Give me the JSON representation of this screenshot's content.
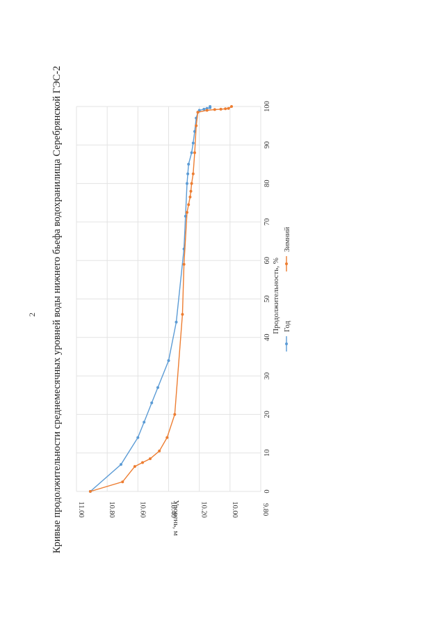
{
  "page_number": "2",
  "chart_data": {
    "type": "line",
    "title": "Кривые продолжительности среднемесячных уровней воды нижнего бьефа водохранилища Серебрянской ГЭС-2",
    "xlabel": "Продолжительность, %",
    "ylabel": "Уровень, м",
    "xlim": [
      0,
      100
    ],
    "ylim": [
      9.8,
      11.0
    ],
    "x_ticks": [
      "0",
      "10",
      "20",
      "30",
      "40",
      "50",
      "60",
      "70",
      "80",
      "90",
      "100"
    ],
    "y_ticks": [
      "11.00",
      "10.80",
      "10.60",
      "10.40",
      "10.20",
      "10.00",
      "9.80"
    ],
    "grid": true,
    "legend_position": "bottom",
    "series": [
      {
        "name": "Год",
        "color": "#5b9bd5",
        "points": [
          [
            0,
            10.91
          ],
          [
            7,
            10.71
          ],
          [
            14,
            10.6
          ],
          [
            18,
            10.56
          ],
          [
            23,
            10.51
          ],
          [
            27,
            10.47
          ],
          [
            34,
            10.4
          ],
          [
            44,
            10.35
          ],
          [
            63,
            10.3
          ],
          [
            71.5,
            10.29
          ],
          [
            80,
            10.28
          ],
          [
            82.5,
            10.275
          ],
          [
            85,
            10.27
          ],
          [
            88,
            10.25
          ],
          [
            90.5,
            10.24
          ],
          [
            93.5,
            10.23
          ],
          [
            97,
            10.22
          ],
          [
            98.5,
            10.21
          ],
          [
            99,
            10.2
          ],
          [
            99.3,
            10.17
          ],
          [
            99.5,
            10.15
          ],
          [
            99.7,
            10.13
          ],
          [
            100,
            10.13
          ]
        ]
      },
      {
        "name": "Зимний",
        "color": "#ed7d31",
        "points": [
          [
            0,
            10.91
          ],
          [
            2.5,
            10.7
          ],
          [
            6.5,
            10.62
          ],
          [
            7.5,
            10.57
          ],
          [
            8.5,
            10.52
          ],
          [
            10.5,
            10.46
          ],
          [
            14,
            10.41
          ],
          [
            20,
            10.36
          ],
          [
            46,
            10.31
          ],
          [
            59,
            10.3
          ],
          [
            72.5,
            10.28
          ],
          [
            74.5,
            10.27
          ],
          [
            76.5,
            10.26
          ],
          [
            78,
            10.255
          ],
          [
            80,
            10.25
          ],
          [
            82.5,
            10.24
          ],
          [
            88,
            10.23
          ],
          [
            95,
            10.22
          ],
          [
            98.5,
            10.21
          ],
          [
            99,
            10.15
          ],
          [
            99.2,
            10.1
          ],
          [
            99.3,
            10.06
          ],
          [
            99.4,
            10.03
          ],
          [
            99.5,
            10.01
          ],
          [
            100,
            9.99
          ]
        ]
      }
    ]
  }
}
